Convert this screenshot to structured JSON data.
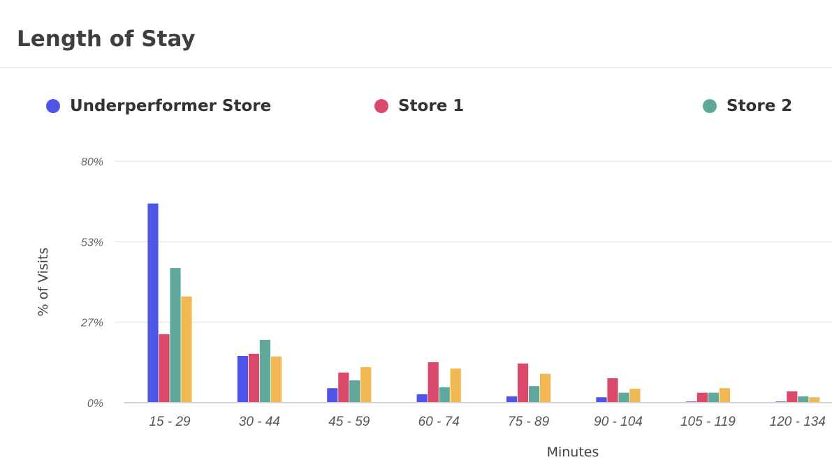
{
  "card": {
    "title": "Length of Stay"
  },
  "legend": [
    {
      "label": "Underperformer Store",
      "color": "#4e54e6"
    },
    {
      "label": "Store 1",
      "color": "#d94a6a"
    },
    {
      "label": "Store 2",
      "color": "#5fa89a"
    }
  ],
  "chart_data": {
    "type": "bar",
    "title": "Length of Stay",
    "xlabel": "Minutes",
    "ylabel": "% of Visits",
    "ylim": [
      0,
      80
    ],
    "yticks": [
      "0%",
      "27%",
      "53%",
      "80%"
    ],
    "ytick_values": [
      0,
      26.67,
      53.33,
      80
    ],
    "grid": true,
    "legend_position": "top",
    "categories": [
      "15 - 29",
      "30 - 44",
      "45 - 59",
      "60 - 74",
      "75 - 89",
      "90 - 104",
      "105 - 119",
      "120 - 134"
    ],
    "series": [
      {
        "name": "Underperformer Store",
        "color": "#4e54e6",
        "values": [
          66,
          15.5,
          4.8,
          2.8,
          2.1,
          1.8,
          0.4,
          0.4
        ]
      },
      {
        "name": "Store 1",
        "color": "#d94a6a",
        "values": [
          22.7,
          16.2,
          10,
          13.4,
          13,
          8.1,
          3.3,
          3.8
        ]
      },
      {
        "name": "Store 2",
        "color": "#5fa89a",
        "values": [
          44.6,
          20.8,
          7.4,
          5.1,
          5.5,
          3.3,
          3.3,
          2.1
        ]
      },
      {
        "color": "#f0b752",
        "values": [
          35.2,
          15.3,
          11.8,
          11.3,
          9.6,
          4.6,
          4.8,
          1.8
        ]
      }
    ]
  }
}
